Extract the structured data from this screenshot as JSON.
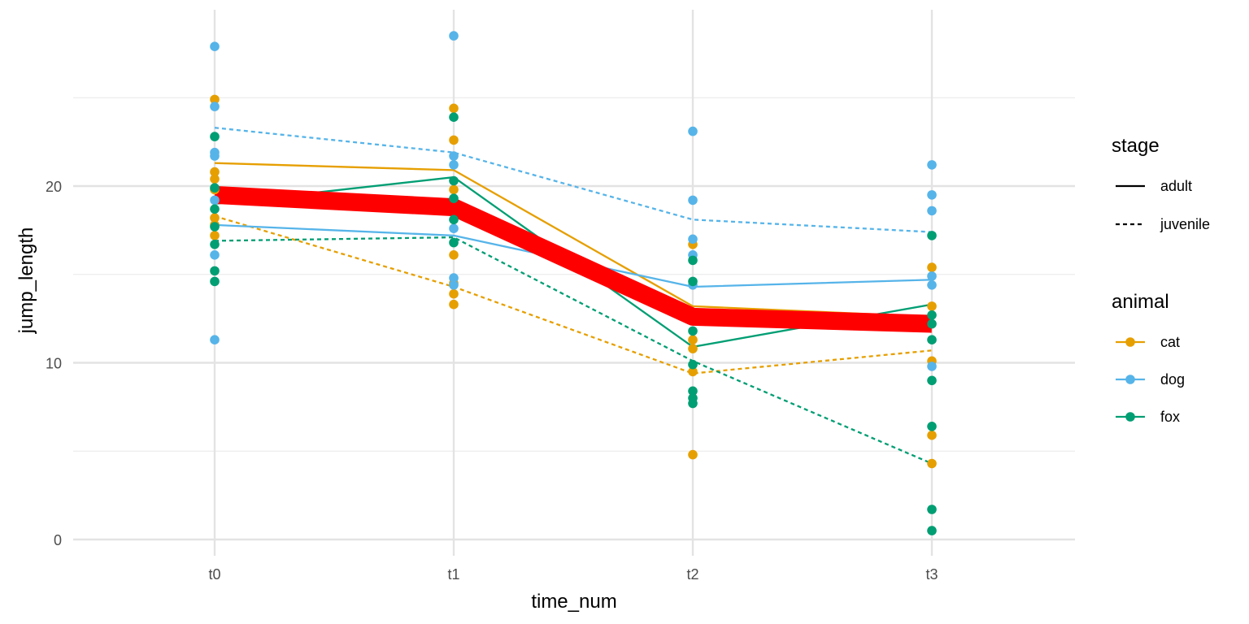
{
  "chart_data": {
    "type": "line",
    "xlabel": "time_num",
    "ylabel": "jump_length",
    "categories": [
      "t0",
      "t1",
      "t2",
      "t3"
    ],
    "ylim": [
      0,
      29
    ],
    "yticks": [
      0,
      10,
      20
    ],
    "grid": true,
    "legend_position": "right",
    "colors": {
      "cat": "#E69F00",
      "dog": "#56B4E9",
      "fox": "#009E73",
      "mean": "#FF0000"
    },
    "legends": [
      {
        "title": "stage",
        "entries": [
          {
            "label": "adult",
            "style": "solid"
          },
          {
            "label": "juvenile",
            "style": "dashed"
          }
        ]
      },
      {
        "title": "animal",
        "entries": [
          {
            "label": "cat",
            "key": "cat"
          },
          {
            "label": "dog",
            "key": "dog"
          },
          {
            "label": "fox",
            "key": "fox"
          }
        ]
      }
    ],
    "points": {
      "cat": [
        [
          24.9,
          20.8,
          20.4,
          19.8,
          18.2,
          17.8,
          17.2
        ],
        [
          24.4,
          22.6,
          19.8,
          16.1,
          14.5,
          13.9,
          13.3
        ],
        [
          16.7,
          11.3,
          10.8,
          9.5,
          4.8
        ],
        [
          15.4,
          13.2,
          10.1,
          5.9,
          4.3
        ]
      ],
      "dog": [
        [
          27.9,
          24.5,
          21.9,
          21.7,
          19.2,
          16.1,
          11.3
        ],
        [
          28.5,
          21.7,
          21.2,
          17.6,
          14.8,
          14.4
        ],
        [
          23.1,
          19.2,
          17.0,
          16.1,
          14.4
        ],
        [
          21.2,
          19.5,
          18.6,
          14.9,
          14.4,
          9.8
        ]
      ],
      "fox": [
        [
          22.8,
          19.9,
          18.7,
          17.7,
          16.7,
          15.2,
          14.6
        ],
        [
          23.9,
          20.3,
          19.3,
          18.1,
          16.8
        ],
        [
          15.8,
          14.6,
          11.8,
          9.9,
          8.4,
          8.0,
          7.7
        ],
        [
          17.2,
          12.7,
          12.2,
          11.3,
          9.0,
          6.4,
          1.7,
          0.5
        ]
      ]
    },
    "series": [
      {
        "animal": "cat",
        "stage": "adult",
        "values": [
          21.3,
          20.9,
          13.2,
          12.6
        ]
      },
      {
        "animal": "cat",
        "stage": "juvenile",
        "values": [
          18.3,
          14.3,
          9.4,
          10.7
        ]
      },
      {
        "animal": "dog",
        "stage": "adult",
        "values": [
          17.8,
          17.2,
          14.3,
          14.7
        ]
      },
      {
        "animal": "dog",
        "stage": "juvenile",
        "values": [
          23.3,
          21.9,
          18.1,
          17.4
        ]
      },
      {
        "animal": "fox",
        "stage": "adult",
        "values": [
          19.0,
          20.5,
          10.9,
          13.3
        ]
      },
      {
        "animal": "fox",
        "stage": "juvenile",
        "values": [
          16.9,
          17.1,
          10.1,
          4.3
        ]
      }
    ],
    "mean_line": [
      19.5,
      18.8,
      12.6,
      12.2
    ]
  }
}
